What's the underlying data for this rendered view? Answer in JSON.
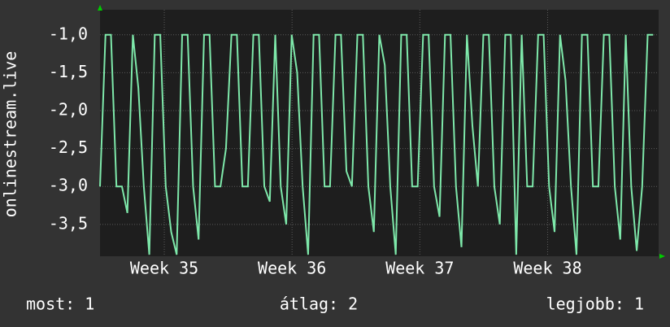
{
  "chart_data": {
    "type": "line",
    "y_label": "onlinestream.live",
    "x": [
      0,
      0.3,
      0.6,
      0.9,
      1.2,
      1.5,
      1.8,
      2.1,
      2.4,
      2.7,
      3,
      3.3,
      3.6,
      3.9,
      4.2,
      4.5,
      4.8,
      5.1,
      5.4,
      5.7,
      6,
      6.3,
      6.6,
      6.9,
      7.2,
      7.5,
      7.8,
      8.1,
      8.4,
      8.7,
      9,
      9.3,
      9.6,
      9.9,
      10.2,
      10.5,
      10.8,
      11.1,
      11.4,
      11.7,
      12,
      12.3,
      12.6,
      12.9,
      13.2,
      13.5,
      13.8,
      14.1,
      14.4,
      14.7,
      15,
      15.3,
      15.6,
      15.9,
      16.2,
      16.5,
      16.8,
      17.1,
      17.4,
      17.7,
      18,
      18.3,
      18.6,
      18.9,
      19.2,
      19.5,
      19.8,
      20.1,
      20.4,
      20.7,
      21,
      21.3,
      21.6,
      21.9,
      22.2,
      22.5,
      22.8,
      23.1,
      23.4,
      23.7,
      24,
      24.3,
      24.6,
      24.9,
      25.2,
      25.5,
      25.8,
      26.1,
      26.4,
      26.7,
      27,
      27.3,
      27.6,
      27.9,
      28.2,
      28.5,
      28.8,
      29.1,
      29.4,
      29.7,
      30,
      30.3
    ],
    "series": [
      {
        "name": "onlinestream.live",
        "color": "#7ee8aa",
        "values": [
          -3,
          -1,
          -1,
          -3,
          -3,
          -3.35,
          -1,
          -1.7,
          -3,
          -3.9,
          -1,
          -1,
          -3,
          -3.6,
          -3.9,
          -1,
          -1,
          -3,
          -3.7,
          -1,
          -1,
          -3,
          -3,
          -2.5,
          -1,
          -1,
          -3,
          -3,
          -1,
          -1,
          -3,
          -3.2,
          -1,
          -3,
          -3.5,
          -1,
          -1.5,
          -3,
          -3.9,
          -1,
          -1,
          -3,
          -3,
          -1,
          -1,
          -2.8,
          -3,
          -1,
          -1,
          -3,
          -3.6,
          -1,
          -1.4,
          -3,
          -3.9,
          -1,
          -1,
          -3,
          -3,
          -1,
          -1,
          -3,
          -3.4,
          -1,
          -1,
          -3,
          -3.8,
          -1,
          -2.2,
          -3,
          -1,
          -1,
          -3,
          -3.5,
          -1,
          -1,
          -3.9,
          -1,
          -3,
          -3,
          -1,
          -1,
          -3,
          -3.6,
          -1,
          -1.6,
          -3,
          -3.9,
          -1,
          -1,
          -3,
          -3,
          -1,
          -1,
          -3,
          -3.7,
          -1,
          -3,
          -3.85,
          -3,
          -1,
          -1
        ]
      }
    ],
    "xlim": [
      0,
      30.6
    ],
    "xticks": [
      {
        "value": 3.52,
        "label": "Week 35"
      },
      {
        "value": 10.52,
        "label": "Week 36"
      },
      {
        "value": 17.52,
        "label": "Week 37"
      },
      {
        "value": 24.52,
        "label": "Week 38"
      }
    ],
    "ylim": [
      -3.92,
      -0.67
    ],
    "yticks": [
      {
        "value": -1,
        "label": "-1,0"
      },
      {
        "value": -1.5,
        "label": "-1,5"
      },
      {
        "value": -2,
        "label": "-2,0"
      },
      {
        "value": -2.5,
        "label": "-2,5"
      },
      {
        "value": -3,
        "label": "-3,0"
      },
      {
        "value": -3.5,
        "label": "-3,5"
      }
    ],
    "grid": true,
    "footer": [
      "most: 1",
      "átlag: 2",
      "legjobb: 1"
    ]
  }
}
